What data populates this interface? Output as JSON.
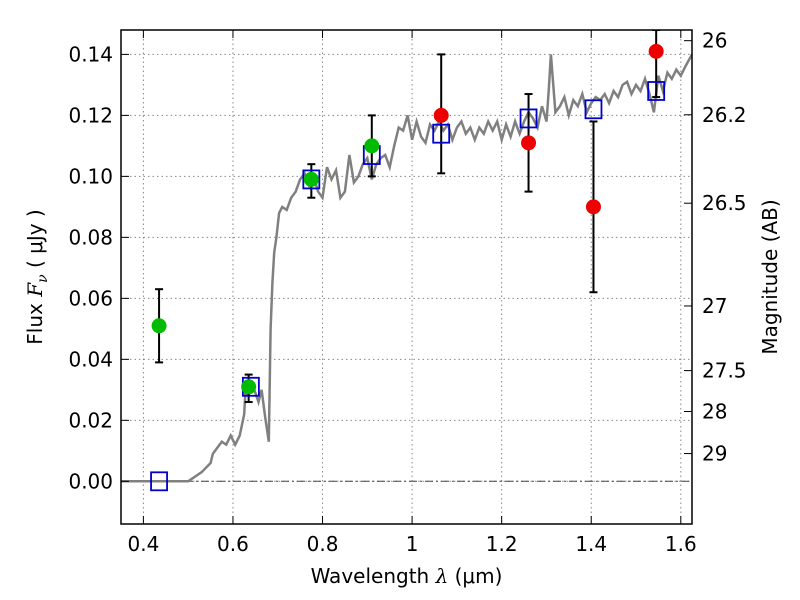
{
  "chart_data": {
    "type": "scatter",
    "xlabel": {
      "prefix": "Wavelength  ",
      "symbol": "λ",
      "units": " (μm)"
    },
    "ylabel": {
      "prefix": "Flux  ",
      "symbol": "F",
      "subscript": "ν",
      "units": "  ( μJy )"
    },
    "y2label": "Magnitude (AB)",
    "xlim": [
      0.35,
      1.625
    ],
    "ylim": [
      -0.014,
      0.148
    ],
    "grid": true,
    "x_ticks": [
      0.4,
      0.6,
      0.8,
      1.0,
      1.2,
      1.4,
      1.6
    ],
    "x_tick_labels": [
      "0.4",
      "0.6",
      "0.8",
      "1",
      "1.2",
      "1.4",
      "1.6"
    ],
    "y_ticks": [
      0.0,
      0.02,
      0.04,
      0.06,
      0.08,
      0.1,
      0.12,
      0.14
    ],
    "y_tick_labels": [
      "0.00",
      "0.02",
      "0.04",
      "0.06",
      "0.08",
      "0.10",
      "0.12",
      "0.14"
    ],
    "magnitude_ticks": [
      {
        "label": "26",
        "flux": 0.1445
      },
      {
        "label": "26.2",
        "flux": 0.1202
      },
      {
        "label": "26.5",
        "flux": 0.0912
      },
      {
        "label": "27",
        "flux": 0.0575
      },
      {
        "label": "27.5",
        "flux": 0.0363
      },
      {
        "label": "28",
        "flux": 0.0229
      },
      {
        "label": "29",
        "flux": 0.0091
      }
    ],
    "colors": {
      "model": "#808080",
      "green_points": "#00bb00",
      "red_points": "#ee0000",
      "model_photometry": "#0000cc",
      "errorbars": "#000000",
      "zero_line": "#444444",
      "grid": "#888888"
    },
    "model_spectrum": {
      "x": [
        0.35,
        0.5,
        0.53,
        0.55,
        0.555,
        0.565,
        0.575,
        0.585,
        0.595,
        0.605,
        0.615,
        0.625,
        0.628,
        0.635,
        0.642,
        0.65,
        0.657,
        0.664,
        0.672,
        0.68,
        0.684,
        0.688,
        0.692,
        0.697,
        0.703,
        0.71,
        0.72,
        0.73,
        0.74,
        0.75,
        0.76,
        0.77,
        0.78,
        0.79,
        0.8,
        0.81,
        0.82,
        0.83,
        0.84,
        0.85,
        0.86,
        0.87,
        0.88,
        0.89,
        0.9,
        0.91,
        0.92,
        0.93,
        0.94,
        0.95,
        0.96,
        0.97,
        0.98,
        0.99,
        1.0,
        1.01,
        1.02,
        1.03,
        1.04,
        1.05,
        1.06,
        1.07,
        1.08,
        1.09,
        1.1,
        1.11,
        1.12,
        1.13,
        1.14,
        1.15,
        1.16,
        1.17,
        1.18,
        1.19,
        1.2,
        1.21,
        1.22,
        1.23,
        1.24,
        1.25,
        1.26,
        1.27,
        1.28,
        1.29,
        1.3,
        1.305,
        1.31,
        1.32,
        1.33,
        1.34,
        1.35,
        1.36,
        1.37,
        1.38,
        1.39,
        1.4,
        1.41,
        1.42,
        1.43,
        1.44,
        1.45,
        1.46,
        1.47,
        1.48,
        1.49,
        1.5,
        1.51,
        1.52,
        1.53,
        1.54,
        1.55,
        1.56,
        1.57,
        1.58,
        1.59,
        1.6,
        1.61,
        1.625
      ],
      "y": [
        0.0,
        0.0,
        0.003,
        0.006,
        0.009,
        0.011,
        0.013,
        0.012,
        0.015,
        0.012,
        0.015,
        0.022,
        0.03,
        0.028,
        0.032,
        0.029,
        0.026,
        0.03,
        0.021,
        0.013,
        0.05,
        0.065,
        0.075,
        0.08,
        0.088,
        0.09,
        0.089,
        0.093,
        0.095,
        0.099,
        0.101,
        0.097,
        0.1,
        0.095,
        0.093,
        0.103,
        0.099,
        0.102,
        0.093,
        0.095,
        0.107,
        0.098,
        0.1,
        0.104,
        0.106,
        0.099,
        0.104,
        0.106,
        0.107,
        0.103,
        0.11,
        0.116,
        0.115,
        0.12,
        0.112,
        0.118,
        0.113,
        0.111,
        0.117,
        0.115,
        0.118,
        0.115,
        0.117,
        0.112,
        0.116,
        0.118,
        0.114,
        0.116,
        0.112,
        0.116,
        0.114,
        0.118,
        0.115,
        0.118,
        0.112,
        0.117,
        0.113,
        0.118,
        0.114,
        0.118,
        0.121,
        0.119,
        0.116,
        0.123,
        0.118,
        0.128,
        0.14,
        0.121,
        0.123,
        0.126,
        0.12,
        0.125,
        0.123,
        0.127,
        0.121,
        0.124,
        0.126,
        0.125,
        0.127,
        0.124,
        0.128,
        0.126,
        0.13,
        0.131,
        0.127,
        0.13,
        0.128,
        0.132,
        0.127,
        0.121,
        0.133,
        0.128,
        0.134,
        0.132,
        0.135,
        0.133,
        0.136,
        0.14
      ]
    },
    "green_points": [
      {
        "x": 0.435,
        "y": 0.051,
        "yerr_low": 0.039,
        "yerr_high": 0.063
      },
      {
        "x": 0.635,
        "y": 0.031,
        "yerr_low": 0.026,
        "yerr_high": 0.035
      },
      {
        "x": 0.775,
        "y": 0.099,
        "yerr_low": 0.093,
        "yerr_high": 0.104
      },
      {
        "x": 0.91,
        "y": 0.11,
        "yerr_low": 0.1,
        "yerr_high": 0.12
      }
    ],
    "red_points": [
      {
        "x": 1.065,
        "y": 0.12,
        "yerr_low": 0.101,
        "yerr_high": 0.14
      },
      {
        "x": 1.26,
        "y": 0.111,
        "yerr_low": 0.095,
        "yerr_high": 0.127
      },
      {
        "x": 1.405,
        "y": 0.09,
        "yerr_low": 0.062,
        "yerr_high": 0.118
      },
      {
        "x": 1.545,
        "y": 0.141,
        "yerr_low": 0.126,
        "yerr_high": 0.148
      }
    ],
    "model_photometry": [
      {
        "x": 0.435,
        "y": 0.0
      },
      {
        "x": 0.64,
        "y": 0.031
      },
      {
        "x": 0.775,
        "y": 0.099
      },
      {
        "x": 0.91,
        "y": 0.107
      },
      {
        "x": 1.065,
        "y": 0.114
      },
      {
        "x": 1.26,
        "y": 0.119
      },
      {
        "x": 1.405,
        "y": 0.122
      },
      {
        "x": 1.545,
        "y": 0.128
      }
    ]
  }
}
